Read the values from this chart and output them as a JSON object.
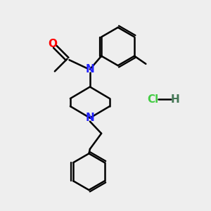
{
  "bg_color": "#eeeeee",
  "bond_color": "#000000",
  "N_color": "#2222ff",
  "O_color": "#ff0000",
  "Cl_color": "#44cc44",
  "H_color": "#447755",
  "line_width": 1.8,
  "font_size": 10,
  "figsize": [
    3.0,
    3.0
  ],
  "dpi": 100,
  "xlim": [
    0,
    10
  ],
  "ylim": [
    0,
    10
  ]
}
